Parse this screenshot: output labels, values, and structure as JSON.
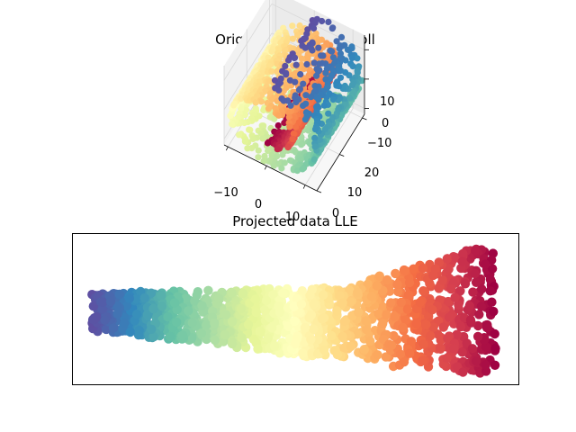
{
  "chart_data": [
    {
      "type": "scatter",
      "projection": "3d",
      "title": "Original Data Swiss Roll",
      "x_ticks": [
        "−10",
        "0",
        "10"
      ],
      "y_ticks": [
        "0",
        "10",
        "20"
      ],
      "z_ticks": [
        "−10",
        "0",
        "10"
      ],
      "xlim": [
        -11,
        13
      ],
      "ylim": [
        0,
        21
      ],
      "zlim": [
        -12,
        15
      ],
      "colormap": "Spectral",
      "color_range": [
        4.7,
        14.1
      ],
      "generator": {
        "n_points": 1500,
        "t_range": [
          4.7,
          14.1
        ],
        "height_range": [
          0,
          21
        ]
      },
      "grid": true
    },
    {
      "type": "scatter",
      "title": "Projected data LLE",
      "xticks": [],
      "yticks": [],
      "colormap": "Spectral",
      "color_range": [
        4.7,
        14.1
      ],
      "generator": {
        "n_points": 1500,
        "u_range": [
          0,
          1
        ],
        "v_range": [
          0,
          1
        ]
      },
      "grid": false
    }
  ]
}
